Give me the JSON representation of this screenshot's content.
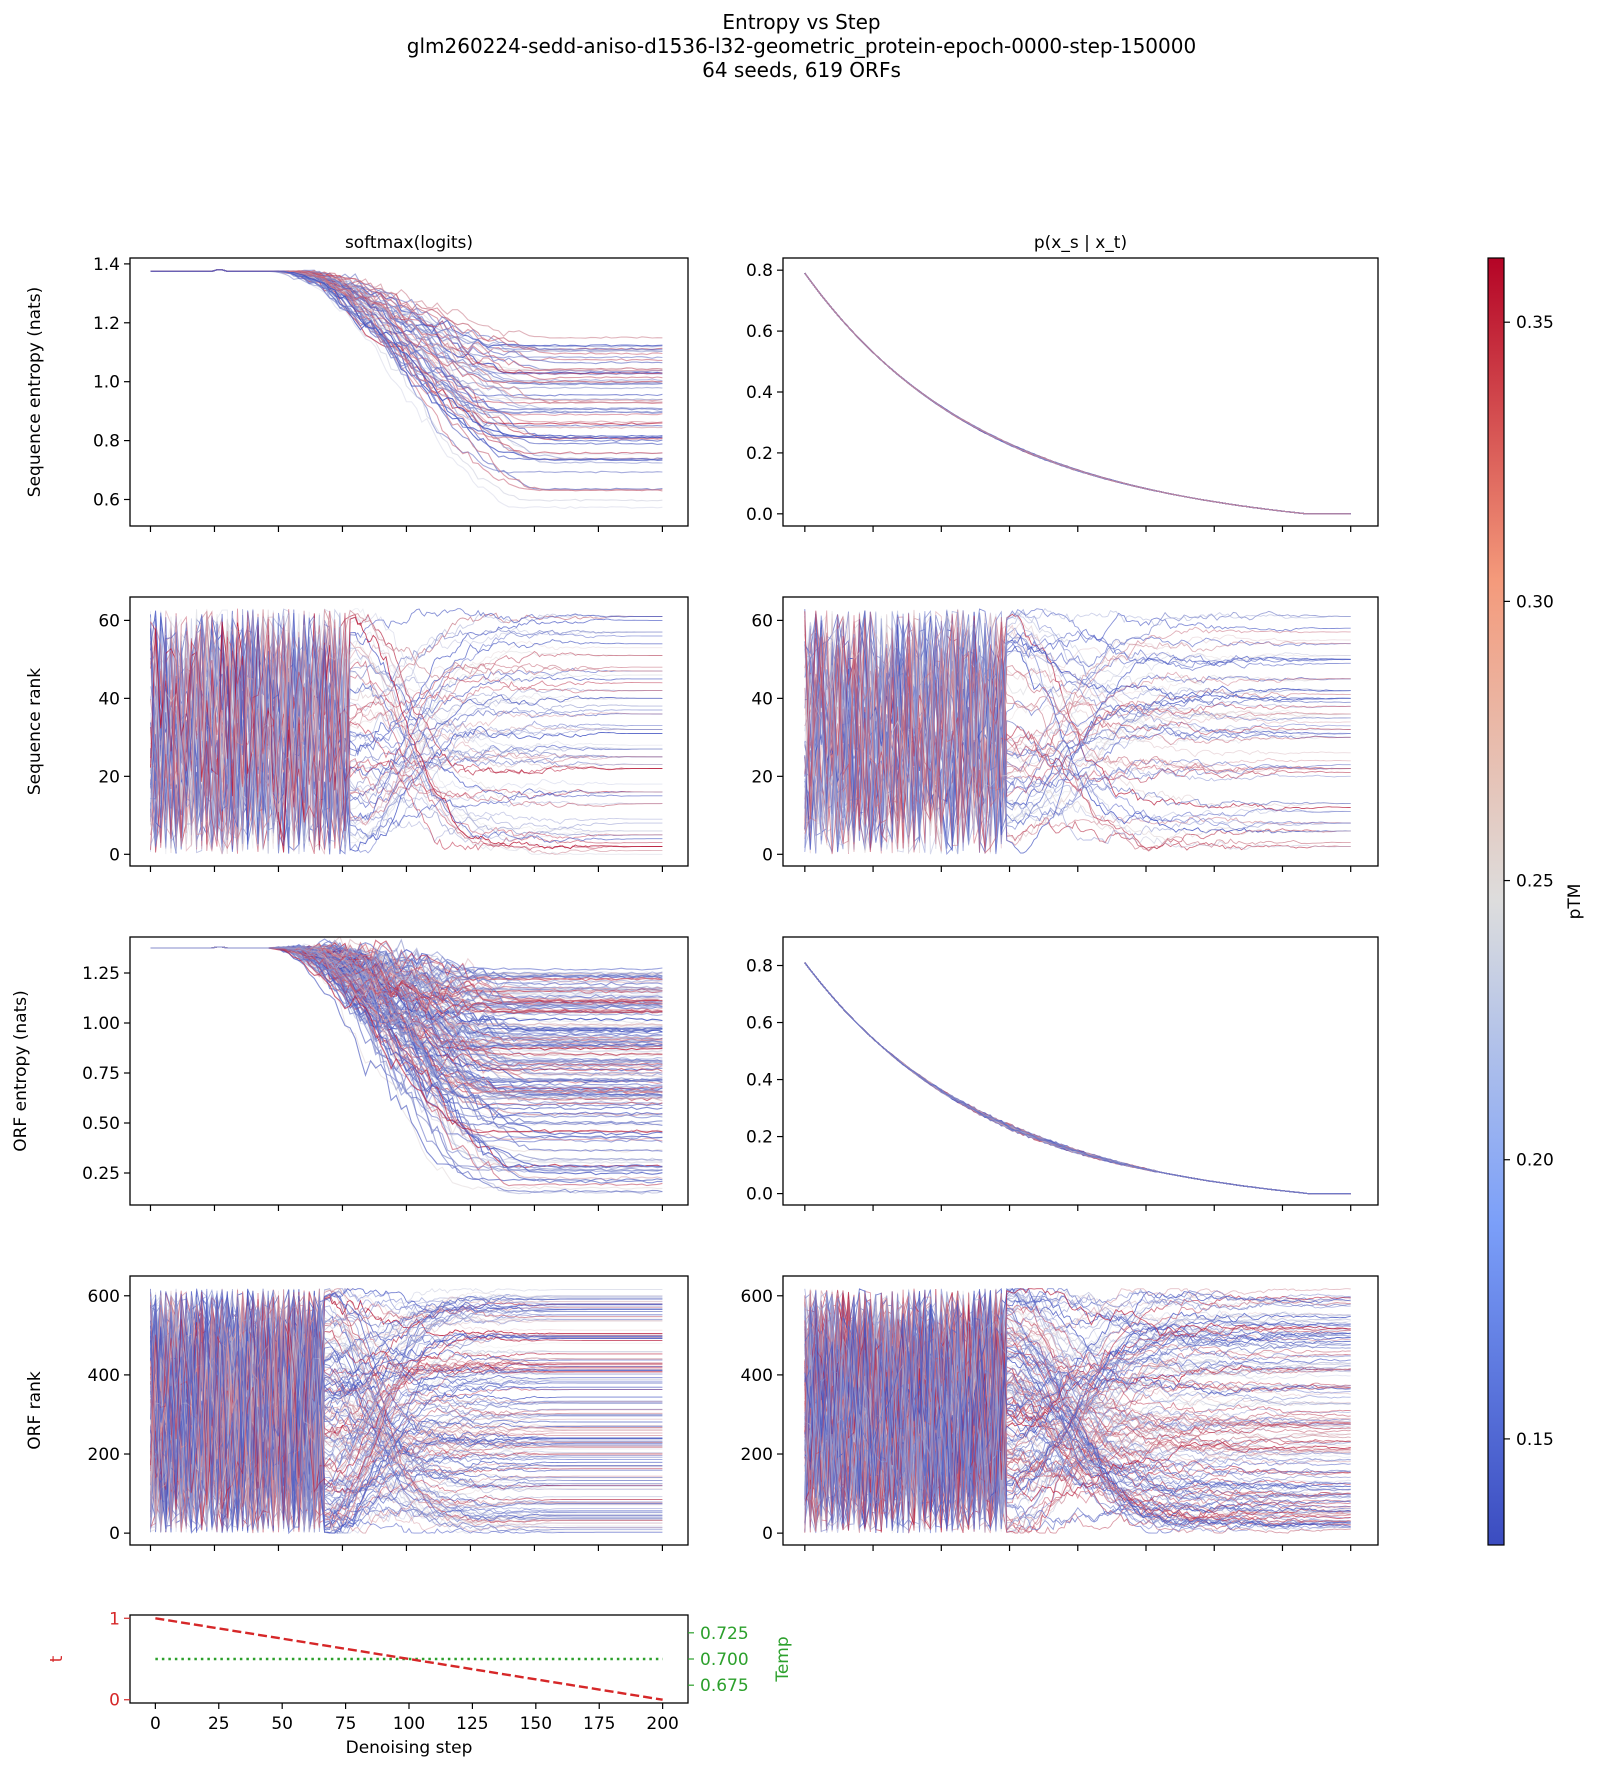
{
  "figure": {
    "title_line1": "Entropy vs Step",
    "title_line2": "glm260224-sedd-aniso-d1536-l32-geometric_protein-epoch-0000-step-150000",
    "title_line3": "64 seeds, 619 ORFs"
  },
  "colors": {
    "cold": "#3b4cc0",
    "mid": "#dddddd",
    "hot": "#b40426",
    "t_line": "#d62728",
    "temp_line": "#2ca02c"
  },
  "chart_data": [
    {
      "id": "seq-entropy-logits",
      "type": "line",
      "title": "softmax(logits)",
      "ylabel": "Sequence entropy (nats)",
      "xlabel": "",
      "xlim": [
        -8,
        210
      ],
      "ylim": [
        0.51,
        1.42
      ],
      "xticks": [
        0,
        25,
        50,
        75,
        100,
        125,
        150,
        175,
        200
      ],
      "show_xticklabels": false,
      "yticks": [
        0.6,
        0.8,
        1.0,
        1.2,
        1.4
      ],
      "ytick_labels": [
        "0.6",
        "0.8",
        "1.0",
        "1.2",
        "1.4"
      ],
      "n_series": 64,
      "start_value": 1.375,
      "plateau_until_step": 50,
      "decay_end_step": 150,
      "final_min": 0.56,
      "final_max": 1.15,
      "jitter": 0.012,
      "style": "plateau-decay"
    },
    {
      "id": "seq-entropy-posterior",
      "type": "line",
      "title": "p(x_s | x_t)",
      "ylabel": "",
      "xlabel": "",
      "xlim": [
        -8,
        210
      ],
      "ylim": [
        -0.04,
        0.84
      ],
      "xticks": [
        0,
        25,
        50,
        75,
        100,
        125,
        150,
        175,
        200
      ],
      "show_xticklabels": false,
      "yticks": [
        0.0,
        0.2,
        0.4,
        0.6,
        0.8
      ],
      "ytick_labels": [
        "0.0",
        "0.2",
        "0.4",
        "0.6",
        "0.8"
      ],
      "n_series": 64,
      "start_value": 0.79,
      "final_value": 0.0,
      "decay_rate": 0.0155,
      "jitter": 0.004,
      "style": "exp-decay"
    },
    {
      "id": "seq-rank-logits",
      "type": "line",
      "title": "",
      "ylabel": "Sequence rank",
      "xlabel": "",
      "xlim": [
        -8,
        210
      ],
      "ylim": [
        -3,
        66
      ],
      "xticks": [
        0,
        25,
        50,
        75,
        100,
        125,
        150,
        175,
        200
      ],
      "show_xticklabels": false,
      "yticks": [
        0,
        20,
        40,
        60
      ],
      "ytick_labels": [
        "0",
        "20",
        "40",
        "60"
      ],
      "n_series": 64,
      "rank_max": 63,
      "chaos_until_step": 80,
      "settle_step": 190,
      "style": "rank"
    },
    {
      "id": "seq-rank-posterior",
      "type": "line",
      "title": "",
      "ylabel": "",
      "xlabel": "",
      "xlim": [
        -8,
        210
      ],
      "ylim": [
        -3,
        66
      ],
      "xticks": [
        0,
        25,
        50,
        75,
        100,
        125,
        150,
        175,
        200
      ],
      "show_xticklabels": false,
      "yticks": [
        0,
        20,
        40,
        60
      ],
      "ytick_labels": [
        "0",
        "20",
        "40",
        "60"
      ],
      "n_series": 64,
      "rank_max": 63,
      "chaos_until_step": 75,
      "settle_step": 200,
      "style": "rank"
    },
    {
      "id": "orf-entropy-logits",
      "type": "line",
      "title": "",
      "ylabel": "ORF entropy (nats)",
      "xlabel": "",
      "xlim": [
        -8,
        210
      ],
      "ylim": [
        0.09,
        1.43
      ],
      "xticks": [
        0,
        25,
        50,
        75,
        100,
        125,
        150,
        175,
        200
      ],
      "show_xticklabels": false,
      "yticks": [
        0.25,
        0.5,
        0.75,
        1.0,
        1.25
      ],
      "ytick_labels": [
        "0.25",
        "0.50",
        "0.75",
        "1.00",
        "1.25"
      ],
      "n_series": 180,
      "start_value": 1.375,
      "plateau_until_step": 50,
      "decay_end_step": 140,
      "final_min": 0.15,
      "final_max": 1.27,
      "jitter": 0.03,
      "style": "plateau-decay"
    },
    {
      "id": "orf-entropy-posterior",
      "type": "line",
      "title": "",
      "ylabel": "",
      "xlabel": "",
      "xlim": [
        -8,
        210
      ],
      "ylim": [
        -0.04,
        0.9
      ],
      "xticks": [
        0,
        25,
        50,
        75,
        100,
        125,
        150,
        175,
        200
      ],
      "show_xticklabels": false,
      "yticks": [
        0.0,
        0.2,
        0.4,
        0.6,
        0.8
      ],
      "ytick_labels": [
        "0.0",
        "0.2",
        "0.4",
        "0.6",
        "0.8"
      ],
      "n_series": 120,
      "start_value": 0.81,
      "final_value": 0.0,
      "decay_rate": 0.0155,
      "jitter": 0.012,
      "style": "exp-decay"
    },
    {
      "id": "orf-rank-logits",
      "type": "line",
      "title": "",
      "ylabel": "ORF rank",
      "xlabel": "",
      "xlim": [
        -8,
        210
      ],
      "ylim": [
        -30,
        650
      ],
      "xticks": [
        0,
        25,
        50,
        75,
        100,
        125,
        150,
        175,
        200
      ],
      "show_xticklabels": false,
      "yticks": [
        0,
        200,
        400,
        600
      ],
      "ytick_labels": [
        "0",
        "200",
        "400",
        "600"
      ],
      "n_series": 160,
      "rank_max": 618,
      "chaos_until_step": 70,
      "settle_step": 160,
      "style": "rank"
    },
    {
      "id": "orf-rank-posterior",
      "type": "line",
      "title": "",
      "ylabel": "",
      "xlabel": "",
      "xlim": [
        -8,
        210
      ],
      "ylim": [
        -30,
        650
      ],
      "xticks": [
        0,
        25,
        50,
        75,
        100,
        125,
        150,
        175,
        200
      ],
      "show_xticklabels": false,
      "yticks": [
        0,
        200,
        400,
        600
      ],
      "ytick_labels": [
        "0",
        "200",
        "400",
        "600"
      ],
      "n_series": 160,
      "rank_max": 618,
      "chaos_until_step": 75,
      "settle_step": 210,
      "style": "rank"
    },
    {
      "id": "schedule",
      "type": "line",
      "title": "",
      "ylabel": "t",
      "y2label": "Temp",
      "xlabel": "Denoising step",
      "xlim": [
        -10,
        210
      ],
      "ylim": [
        -0.04,
        1.04
      ],
      "y2lim": [
        0.658,
        0.742
      ],
      "xticks": [
        0,
        25,
        50,
        75,
        100,
        125,
        150,
        175,
        200
      ],
      "xtick_labels": [
        "0",
        "25",
        "50",
        "75",
        "100",
        "125",
        "150",
        "175",
        "200"
      ],
      "show_xticklabels": true,
      "yticks": [
        0,
        1
      ],
      "ytick_labels": [
        "0",
        "1"
      ],
      "y2ticks": [
        0.675,
        0.7,
        0.725
      ],
      "y2tick_labels": [
        "0.675",
        "0.700",
        "0.725"
      ],
      "series": [
        {
          "name": "t",
          "x": [
            0,
            200
          ],
          "y": [
            1.0,
            0.0
          ],
          "axis": "left",
          "dash": "dashed"
        },
        {
          "name": "Temp",
          "x": [
            0,
            200
          ],
          "y": [
            0.7,
            0.7
          ],
          "axis": "right",
          "dash": "dotted"
        }
      ]
    },
    {
      "id": "colorbar",
      "type": "heatmap",
      "label": "pTM",
      "colormap": "coolwarm",
      "vlim": [
        0.131,
        0.3615
      ],
      "ticks": [
        0.15,
        0.2,
        0.25,
        0.3,
        0.35
      ],
      "tick_labels": [
        "0.15",
        "0.20",
        "0.25",
        "0.30",
        "0.35"
      ]
    }
  ]
}
